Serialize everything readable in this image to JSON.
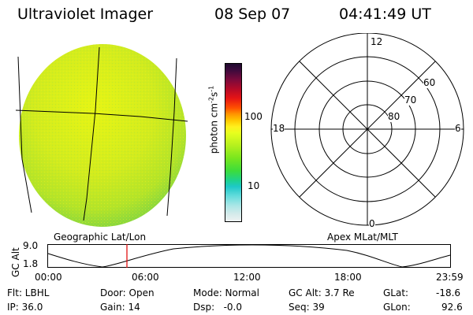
{
  "header": {
    "title": "Ultraviolet Imager",
    "date": "08 Sep 07",
    "time": "04:41:49 UT"
  },
  "image_panel": {
    "label": "Geographic Lat/Lon"
  },
  "colorbar": {
    "unit_label": "photon cm-2s-1",
    "ticks": [
      "100",
      "10"
    ],
    "colors": [
      "#1e0a2e",
      "#3c0a3c",
      "#6e0a3c",
      "#a00a28",
      "#d20a1e",
      "#f01414",
      "#ff6400",
      "#ffa000",
      "#ffd200",
      "#fff01e",
      "#dcff1e",
      "#a0f01e",
      "#5ae61e",
      "#1ed25a",
      "#1ec8b4",
      "#50dcdc",
      "#96e6e6",
      "#c8eaea",
      "#e6f0f0"
    ]
  },
  "polar_panel": {
    "label": "Apex MLat/MLT",
    "mlt_labels": {
      "top": "12",
      "right": "6",
      "bottom": "0",
      "left": "18"
    },
    "lat_labels": [
      "60",
      "70",
      "80"
    ]
  },
  "altitude_plot": {
    "ylabel": "GC Alt",
    "yticks": [
      "9.0",
      "1.8"
    ],
    "xticks": [
      "00:00",
      "06:00",
      "12:00",
      "18:00",
      "23:59"
    ],
    "marker_color": "#e00000"
  },
  "status": {
    "filter": "Flt: LBHL",
    "ip": "IP: 36.0",
    "door": "Door: Open",
    "gain": "Gain: 14",
    "mode": "Mode: Normal",
    "dsp": "Dsp:   -0.0",
    "gc_alt": "GC Alt: 3.7 Re",
    "seq": "Seq: 39",
    "glat_label": "GLat:",
    "glat_value": "-18.6",
    "glon_label": "GLon:",
    "glon_value": "92.6"
  }
}
